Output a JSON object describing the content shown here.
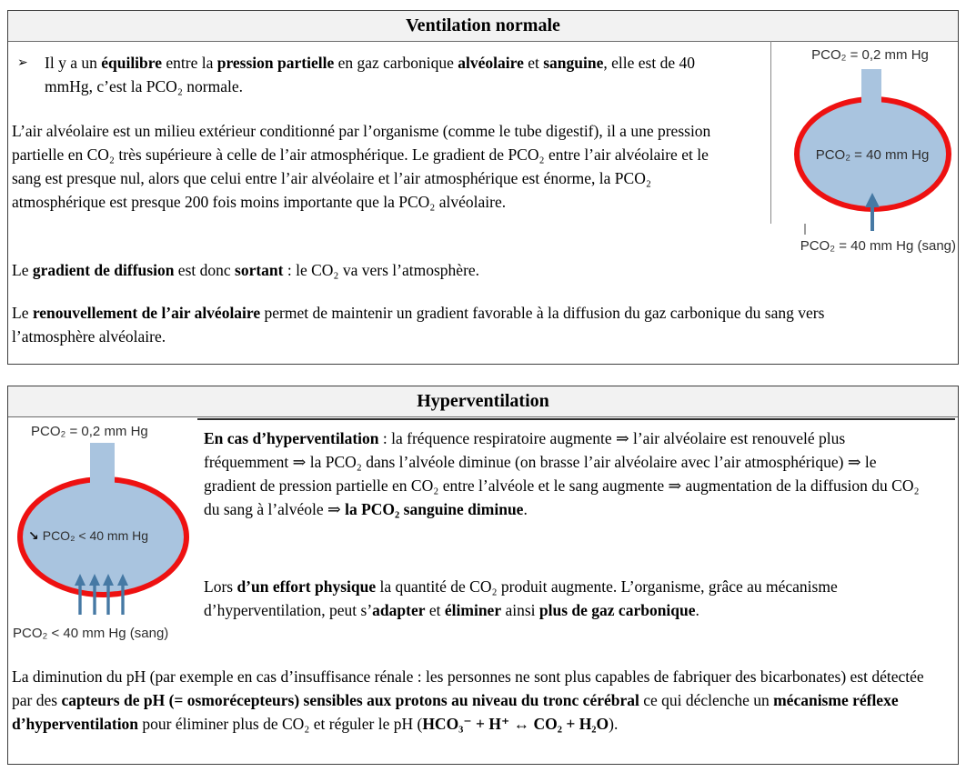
{
  "colors": {
    "header_bg": "#f2f2f2",
    "box_border": "#3e3e3e",
    "alveolus_fill": "#a9c4df",
    "alveolus_ring": "#ee1111",
    "arrow_blue": "#4679a4",
    "text": "#000000"
  },
  "box1": {
    "title": "Ventilation normale",
    "bullet_char": "➢",
    "para_bullet": [
      {
        "t": "Il y a un "
      },
      {
        "t": "équilibre",
        "b": true
      },
      {
        "t": " entre la "
      },
      {
        "t": "pression partielle",
        "b": true
      },
      {
        "t": " en gaz carbonique "
      },
      {
        "t": "alvéolaire",
        "b": true
      },
      {
        "t": " et "
      },
      {
        "t": "sanguine",
        "b": true
      },
      {
        "t": ", elle est de 40 mmHg, c’est la PCO₂ normale."
      }
    ],
    "para_milieu": [
      {
        "t": "L’air alvéolaire est un milieu extérieur conditionné par l’organisme (comme le tube digestif), il a une pression partielle en CO₂ très supérieure à celle de l’air atmosphérique. Le gradient de PCO₂ entre l’air alvéolaire et le sang est presque nul, alors que celui entre l’air alvéolaire et l’air atmosphérique est énorme, la PCO₂ atmosphérique est presque 200 fois moins importante que la PCO₂ alvéolaire."
      }
    ],
    "para_gradient": [
      {
        "t": "Le "
      },
      {
        "t": "gradient de diffusion",
        "b": true
      },
      {
        "t": " est donc "
      },
      {
        "t": "sortant",
        "b": true
      },
      {
        "t": " : le CO₂ va vers l’atmosphère."
      }
    ],
    "para_renouvellement": [
      {
        "t": "Le "
      },
      {
        "t": "renouvellement de l’air alvéolaire",
        "b": true
      },
      {
        "t": " permet de maintenir un gradient favorable à la diffusion du gaz carbonique du sang vers l’atmosphère alvéolaire."
      }
    ],
    "diagram": {
      "top_label": "PCO₂ = 0,2 mm Hg",
      "center_label": "PCO₂ = 40 mm Hg",
      "bottom_label": "PCO₂ = 40 mm Hg (sang)"
    }
  },
  "box2": {
    "title": "Hyperventilation",
    "para_hyper": [
      {
        "t": "En cas d’hyperventilation",
        "b": true
      },
      {
        "t": " : la fréquence respiratoire augmente ⇒ l’air alvéolaire est renouvelé plus fréquemment ⇒ la PCO₂ dans l’alvéole diminue (on brasse l’air alvéolaire avec l’air atmosphérique) ⇒ le gradient de pression partielle en CO₂ entre l’alvéole et le sang augmente ⇒ augmentation de la diffusion du CO₂ du sang à l’alvéole ⇒ "
      },
      {
        "t": "la PCO₂ sanguine diminue",
        "b": true
      },
      {
        "t": "."
      }
    ],
    "para_effort": [
      {
        "t": "Lors "
      },
      {
        "t": "d’un effort physique",
        "b": true
      },
      {
        "t": " la quantité de CO₂ produit augmente. L’organisme, grâce au mécanisme d’hyperventilation, peut s’"
      },
      {
        "t": "adapter",
        "b": true
      },
      {
        "t": " et "
      },
      {
        "t": "éliminer",
        "b": true
      },
      {
        "t": " ainsi "
      },
      {
        "t": "plus de gaz carbonique",
        "b": true
      },
      {
        "t": "."
      }
    ],
    "para_ph": [
      {
        "t": "La diminution du pH (par exemple en cas d’insuffisance rénale : les personnes ne sont plus capables de fabriquer des bicarbonates) est détectée par des "
      },
      {
        "t": "capteurs de pH (= osmorécepteurs) sensibles aux protons au niveau du tronc cérébral",
        "b": true
      },
      {
        "t": " ce qui déclenche un "
      },
      {
        "t": "mécanisme réflexe d’hyperventilation",
        "b": true
      },
      {
        "t": " pour éliminer plus de CO₂ et réguler le pH ("
      },
      {
        "t": "HCO₃⁻ + H⁺ ↔ CO₂ + H₂O",
        "b": true
      },
      {
        "t": ")."
      }
    ],
    "diagram": {
      "top_label": "PCO₂ = 0,2 mm Hg",
      "decrease_arrow": "↘",
      "center_label": "PCO₂ < 40 mm Hg",
      "bottom_label": "PCO₂ < 40 mm Hg (sang)"
    }
  }
}
